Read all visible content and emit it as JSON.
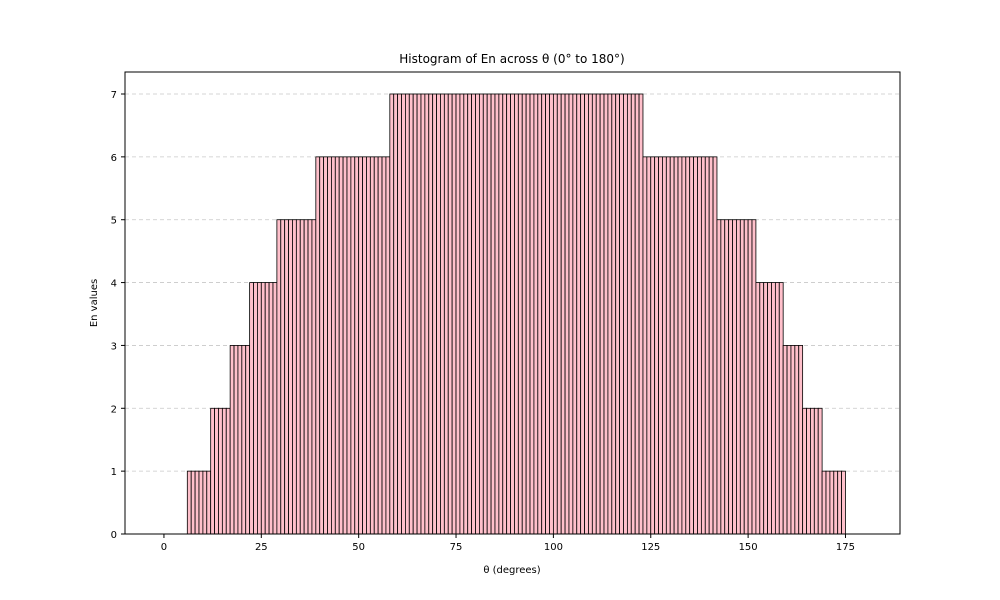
{
  "chart_data": {
    "type": "bar",
    "title": "Histogram of En across θ (0° to 180°)",
    "xlabel": "θ (degrees)",
    "ylabel": "En values",
    "xlim": [
      -10,
      189
    ],
    "ylim": [
      0,
      7.35
    ],
    "x_ticks": [
      0,
      25,
      50,
      75,
      100,
      125,
      150,
      175
    ],
    "y_ticks": [
      0,
      1,
      2,
      3,
      4,
      5,
      6,
      7
    ],
    "grid": "y-dashed",
    "bar_color": "#ffc0cb",
    "edge_color": "#000000",
    "bin_width": 1,
    "x_start": 0,
    "values": [
      0,
      0,
      0,
      0,
      0,
      0,
      1,
      1,
      1,
      1,
      1,
      1,
      2,
      2,
      2,
      2,
      2,
      3,
      3,
      3,
      3,
      3,
      4,
      4,
      4,
      4,
      4,
      4,
      4,
      5,
      5,
      5,
      5,
      5,
      5,
      5,
      5,
      5,
      5,
      6,
      6,
      6,
      6,
      6,
      6,
      6,
      6,
      6,
      6,
      6,
      6,
      6,
      6,
      6,
      6,
      6,
      6,
      6,
      7,
      7,
      7,
      7,
      7,
      7,
      7,
      7,
      7,
      7,
      7,
      7,
      7,
      7,
      7,
      7,
      7,
      7,
      7,
      7,
      7,
      7,
      7,
      7,
      7,
      7,
      7,
      7,
      7,
      7,
      7,
      7,
      7,
      7,
      7,
      7,
      7,
      7,
      7,
      7,
      7,
      7,
      7,
      7,
      7,
      7,
      7,
      7,
      7,
      7,
      7,
      7,
      7,
      7,
      7,
      7,
      7,
      7,
      7,
      7,
      7,
      7,
      7,
      7,
      7,
      6,
      6,
      6,
      6,
      6,
      6,
      6,
      6,
      6,
      6,
      6,
      6,
      6,
      6,
      6,
      6,
      6,
      6,
      6,
      5,
      5,
      5,
      5,
      5,
      5,
      5,
      5,
      5,
      5,
      4,
      4,
      4,
      4,
      4,
      4,
      4,
      3,
      3,
      3,
      3,
      3,
      2,
      2,
      2,
      2,
      2,
      1,
      1,
      1,
      1,
      1,
      1,
      0,
      0,
      0,
      0,
      0,
      0
    ]
  }
}
